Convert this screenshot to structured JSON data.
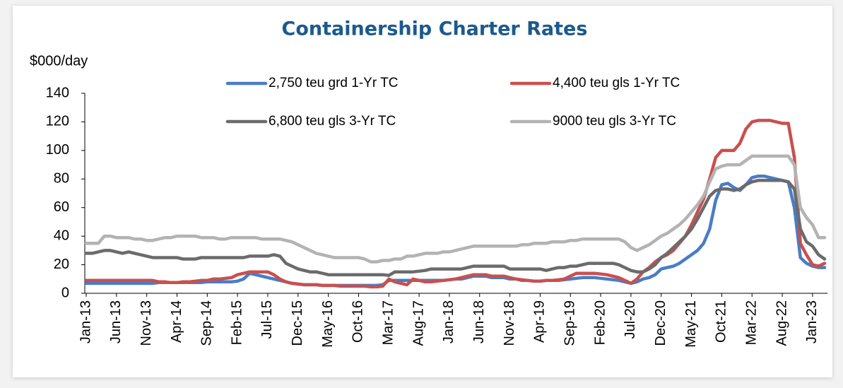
{
  "chart_data": {
    "type": "line",
    "title": "Containership Charter Rates",
    "y_label": "$000/day",
    "categories": [
      "Jan-13",
      null,
      null,
      null,
      null,
      "Jun-13",
      null,
      null,
      null,
      null,
      "Nov-13",
      null,
      null,
      null,
      null,
      "Apr-14",
      null,
      null,
      null,
      null,
      "Sep-14",
      null,
      null,
      null,
      null,
      "Feb-15",
      null,
      null,
      null,
      null,
      "Jul-15",
      null,
      null,
      null,
      null,
      "Dec-15",
      null,
      null,
      null,
      null,
      "May-16",
      null,
      null,
      null,
      null,
      "Oct-16",
      null,
      null,
      null,
      null,
      "Mar-17",
      null,
      null,
      null,
      null,
      "Aug-17",
      null,
      null,
      null,
      null,
      "Jan-18",
      null,
      null,
      null,
      null,
      "Jun-18",
      null,
      null,
      null,
      null,
      "Nov-18",
      null,
      null,
      null,
      null,
      "Apr-19",
      null,
      null,
      null,
      null,
      "Sep-19",
      null,
      null,
      null,
      null,
      "Feb-20",
      null,
      null,
      null,
      null,
      "Jul-20",
      null,
      null,
      null,
      null,
      "Dec-20",
      null,
      null,
      null,
      null,
      "May-21",
      null,
      null,
      null,
      null,
      "Oct-21",
      null,
      null,
      null,
      null,
      "Mar-22",
      null,
      null,
      null,
      null,
      "Aug-22",
      null,
      null,
      null,
      null,
      "Jan-23",
      null,
      null
    ],
    "series": [
      {
        "name": "2,750 teu grd 1-Yr TC",
        "color": "#4a7cc7",
        "values": [
          7,
          7,
          7,
          7,
          7,
          7,
          7,
          7,
          7,
          7,
          7,
          7,
          7.5,
          7.5,
          7.5,
          7.5,
          7.5,
          7.5,
          7.5,
          7.5,
          8,
          8,
          8,
          8,
          8,
          8.5,
          10,
          14,
          13,
          12,
          11,
          10,
          9,
          8,
          7,
          6.5,
          6,
          6,
          6,
          5.5,
          5.5,
          5.5,
          5.5,
          5.5,
          5.5,
          5.5,
          5.5,
          5.5,
          5.5,
          6,
          9,
          9,
          9,
          9,
          9,
          9,
          9,
          9,
          9,
          9,
          9.5,
          10,
          10,
          11,
          12,
          12,
          12,
          11,
          11,
          11,
          10,
          10,
          9,
          9,
          8.5,
          8.5,
          9,
          9,
          9,
          9.5,
          10,
          10.5,
          11,
          11,
          11,
          10.5,
          10,
          9.5,
          9,
          8,
          7,
          8,
          10,
          11,
          13,
          17,
          18,
          19,
          21,
          24,
          27,
          30,
          35,
          45,
          65,
          76,
          77,
          74,
          72,
          76,
          81,
          82,
          82,
          81,
          80,
          79,
          78,
          60,
          25,
          21,
          19,
          18,
          18
        ]
      },
      {
        "name": "4,400 teu gls 1-Yr TC",
        "color": "#c8504f",
        "values": [
          9,
          9,
          9,
          9,
          9,
          9,
          9,
          9,
          9,
          9,
          9,
          9,
          8,
          8,
          7.5,
          7.5,
          8,
          8,
          8.5,
          9,
          9,
          10,
          10,
          10.5,
          11,
          13,
          14,
          15,
          15,
          15,
          15,
          13,
          10,
          8,
          7,
          6.5,
          6,
          6,
          6,
          5.5,
          5.5,
          5.5,
          5,
          5,
          5,
          5,
          5,
          4.5,
          4.5,
          5,
          10,
          8,
          7,
          6,
          10,
          9,
          8,
          8,
          8.5,
          9,
          9.5,
          10,
          11,
          12,
          13,
          13,
          13,
          12,
          12,
          12,
          11,
          10,
          9.5,
          9,
          8.5,
          8.5,
          9,
          9,
          9.5,
          10,
          12,
          14,
          14,
          14,
          14,
          13.5,
          13,
          12,
          11,
          9,
          7,
          10,
          15,
          18,
          22,
          25,
          27,
          30,
          35,
          40,
          48,
          57,
          66,
          80,
          95,
          100,
          100,
          100,
          105,
          115,
          120,
          121,
          121,
          121,
          120,
          119,
          119,
          95,
          35,
          27,
          20,
          19,
          21
        ]
      },
      {
        "name": "6,800 teu gls 3-Yr TC",
        "color": "#6b6b6b",
        "values": [
          28,
          28,
          29,
          30,
          30,
          29,
          28,
          29,
          28,
          27,
          26,
          25,
          25,
          25,
          25,
          25,
          24,
          24,
          24,
          25,
          25,
          25,
          25,
          25,
          25,
          25,
          25,
          26,
          26,
          26,
          26,
          27,
          26,
          21,
          19,
          17,
          16,
          15,
          15,
          14,
          13,
          13,
          13,
          13,
          13,
          13,
          13,
          13,
          13,
          13,
          12.5,
          15,
          15,
          15,
          15,
          15.5,
          16,
          17,
          17,
          17,
          17,
          17,
          17,
          18,
          19,
          19,
          19,
          19,
          19,
          19,
          17,
          17,
          17,
          17,
          17,
          17,
          16,
          17,
          18,
          18,
          19,
          19,
          20,
          21,
          21,
          21,
          21,
          21,
          20,
          18,
          16,
          15,
          15,
          17,
          20,
          25,
          28,
          32,
          36,
          40,
          45,
          52,
          60,
          68,
          72,
          73,
          73,
          72,
          73,
          76,
          78,
          79,
          79,
          79,
          79,
          79,
          78,
          73,
          45,
          36,
          33,
          27,
          24
        ]
      },
      {
        "name": "9000 teu gls 3-Yr TC",
        "color": "#b3b3b3",
        "values": [
          35,
          35,
          35,
          40,
          40,
          39,
          39,
          39,
          38,
          38,
          37,
          37,
          38,
          39,
          39,
          40,
          40,
          40,
          40,
          39,
          39,
          39,
          38,
          38,
          39,
          39,
          39,
          39,
          39,
          38,
          38,
          38,
          38,
          37,
          36,
          34,
          32,
          30,
          28,
          27,
          26,
          25,
          25,
          25,
          25,
          25,
          24,
          22,
          22,
          23,
          23,
          24,
          24,
          26,
          26,
          27,
          28,
          28,
          28,
          29,
          29,
          30,
          31,
          32,
          33,
          33,
          33,
          33,
          33,
          33,
          33,
          33,
          34,
          34,
          35,
          35,
          35,
          36,
          36,
          36,
          37,
          37,
          38,
          38,
          38,
          38,
          38,
          38,
          38,
          36,
          32,
          30,
          32,
          34,
          37,
          40,
          42,
          45,
          48,
          52,
          57,
          62,
          68,
          78,
          87,
          89,
          90,
          90,
          90,
          93,
          96,
          96,
          96,
          96,
          96,
          96,
          96,
          90,
          60,
          53,
          48,
          39,
          39
        ]
      }
    ],
    "ylim": [
      0,
      140
    ],
    "yticks": [
      0,
      20,
      40,
      60,
      80,
      100,
      120,
      140
    ],
    "grid": false
  }
}
